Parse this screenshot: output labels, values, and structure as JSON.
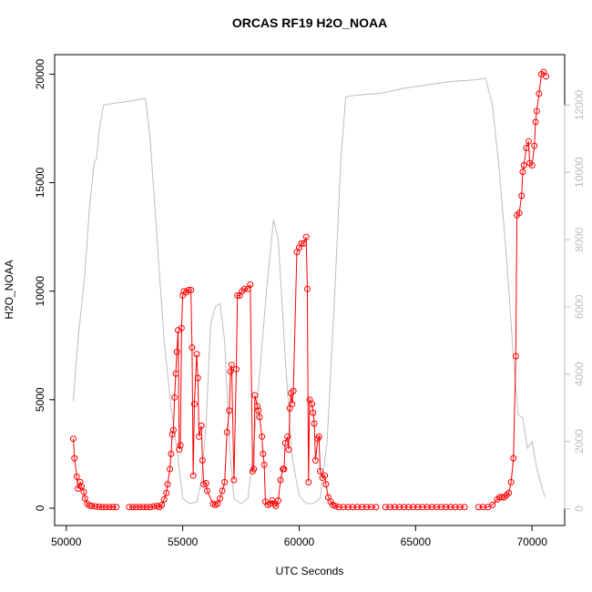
{
  "chart_data": {
    "type": "line",
    "title": "ORCAS RF19 H2O_NOAA",
    "x_label": "UTC Seconds",
    "y_label": "H2O_NOAA",
    "xlim": [
      49500,
      71400
    ],
    "xticks": [
      50000,
      55000,
      60000,
      65000,
      70000
    ],
    "ylim": [
      -800,
      20900
    ],
    "yticks": [
      0,
      5000,
      10000,
      15000,
      20000
    ],
    "y2lim": [
      -500,
      13500
    ],
    "y2ticks": [
      0,
      2000,
      4000,
      6000,
      8000,
      10000,
      12000
    ],
    "series": [
      {
        "color": "#bebebe",
        "axis": "y2",
        "markers": false,
        "x": [
          50300,
          50500,
          50800,
          51000,
          51200,
          51300,
          51400,
          51600,
          52000,
          52500,
          53000,
          53400,
          53600,
          53800,
          54000,
          54200,
          54500,
          54800,
          55000,
          55300,
          55600,
          55800,
          56000,
          56200,
          56400,
          56600,
          56800,
          57000,
          57200,
          57500,
          57800,
          58000,
          58300,
          58600,
          58900,
          59100,
          59400,
          59700,
          60000,
          60300,
          60600,
          60900,
          61200,
          61500,
          61800,
          62000,
          62500,
          63500,
          64500,
          65500,
          66500,
          67500,
          68000,
          68300,
          68600,
          68900,
          69200,
          69400,
          69600,
          69800,
          70000,
          70200,
          70400,
          70550
        ],
        "values": [
          3200,
          5000,
          7000,
          9000,
          10300,
          10400,
          11200,
          12000,
          12050,
          12100,
          12150,
          12200,
          11000,
          9000,
          7000,
          5000,
          3000,
          1500,
          300,
          150,
          200,
          800,
          2500,
          5500,
          6000,
          6100,
          5000,
          2000,
          300,
          150,
          300,
          1500,
          4000,
          6500,
          8600,
          8000,
          4500,
          1500,
          400,
          150,
          150,
          300,
          2000,
          6000,
          10500,
          12250,
          12300,
          12350,
          12500,
          12600,
          12700,
          12750,
          12800,
          12000,
          10000,
          7500,
          4500,
          2800,
          2700,
          1800,
          2000,
          1200,
          700,
          350
        ]
      },
      {
        "color": "#ff0000",
        "markers": true,
        "x": [
          50300,
          50350,
          50450,
          50500,
          50600,
          50650,
          50750,
          50800,
          50900,
          51000,
          51100,
          51250,
          51400,
          51550,
          51700,
          51850,
          52000,
          52150,
          52450,
          52700,
          52850,
          53000,
          53150,
          53300,
          53450,
          53600,
          53750,
          53900,
          54000,
          54100,
          54200,
          54300,
          54350,
          54450,
          54500,
          54550,
          54600,
          54650,
          54700,
          54750,
          54800,
          54850,
          54900,
          54950,
          55000,
          55050,
          55150,
          55250,
          55350,
          55400,
          55450,
          55500,
          55600,
          55650,
          55700,
          55800,
          55850,
          55900,
          56000,
          56050,
          56300,
          56400,
          56500,
          56600,
          56700,
          56800,
          56900,
          57000,
          57050,
          57100,
          57200,
          57300,
          57350,
          57450,
          57550,
          57650,
          57800,
          57900,
          58000,
          58050,
          58100,
          58200,
          58250,
          58300,
          58400,
          58450,
          58500,
          58550,
          58650,
          58750,
          58850,
          58950,
          59000,
          59100,
          59200,
          59300,
          59350,
          59400,
          59500,
          59550,
          59600,
          59650,
          59700,
          59750,
          59900,
          60000,
          60100,
          60200,
          60300,
          60350,
          60400,
          60450,
          60550,
          60600,
          60650,
          60700,
          60800,
          60850,
          60900,
          61000,
          61100,
          61150,
          61250,
          61350,
          61450,
          61550,
          61700,
          61900,
          62100,
          62300,
          62500,
          62700,
          62900,
          63100,
          63300,
          63500,
          63700,
          63900,
          64100,
          64300,
          64500,
          64700,
          64900,
          65100,
          65300,
          65500,
          65700,
          65900,
          66100,
          66300,
          66500,
          66700,
          66900,
          67100,
          67400,
          67700,
          67900,
          68100,
          68300,
          68500,
          68600,
          68700,
          68800,
          68900,
          69000,
          69100,
          69200,
          69300,
          69350,
          69450,
          69550,
          69600,
          69650,
          69750,
          69850,
          69900,
          70000,
          70100,
          70150,
          70200,
          70300,
          70400,
          70500,
          70600
        ],
        "values": [
          3200,
          2300,
          1450,
          900,
          1200,
          1000,
          750,
          450,
          200,
          120,
          100,
          80,
          60,
          50,
          50,
          50,
          50,
          50,
          null,
          50,
          50,
          50,
          50,
          50,
          50,
          50,
          80,
          100,
          50,
          150,
          400,
          700,
          1100,
          1800,
          2500,
          3400,
          3600,
          5100,
          6200,
          7200,
          8200,
          2700,
          2900,
          8300,
          9800,
          10000,
          9950,
          10050,
          10050,
          7400,
          1500,
          4800,
          7100,
          6000,
          3300,
          3800,
          2200,
          1100,
          1150,
          800,
          200,
          150,
          200,
          450,
          800,
          1200,
          3500,
          4500,
          6300,
          6600,
          1300,
          6400,
          9800,
          9800,
          10000,
          10100,
          10100,
          10300,
          1700,
          1800,
          5200,
          4700,
          4500,
          4200,
          3300,
          2500,
          2000,
          300,
          150,
          200,
          350,
          200,
          100,
          350,
          1300,
          1800,
          1800,
          3000,
          3300,
          2700,
          4600,
          5300,
          4800,
          5400,
          11800,
          12000,
          12200,
          12200,
          12500,
          10100,
          1200,
          5000,
          4800,
          4400,
          3900,
          2200,
          3200,
          3300,
          1700,
          1400,
          1500,
          1100,
          500,
          300,
          150,
          100,
          50,
          50,
          50,
          50,
          50,
          50,
          50,
          50,
          50,
          null,
          50,
          50,
          50,
          50,
          50,
          50,
          50,
          50,
          50,
          50,
          50,
          50,
          50,
          50,
          50,
          50,
          50,
          50,
          null,
          50,
          50,
          50,
          150,
          400,
          500,
          500,
          500,
          600,
          700,
          1200,
          2300,
          7000,
          13500,
          13600,
          14400,
          15500,
          15800,
          16600,
          16900,
          15900,
          15800,
          16700,
          17800,
          18300,
          19100,
          20000,
          20100,
          19900
        ]
      }
    ]
  }
}
